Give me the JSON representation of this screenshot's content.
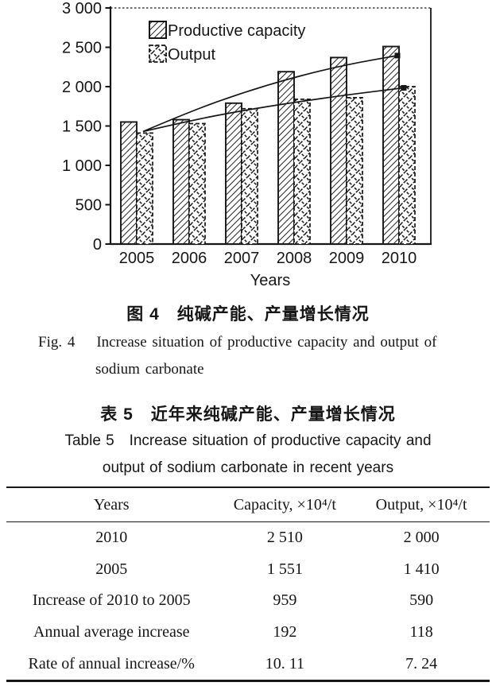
{
  "figure": {
    "caption_cn": "图 4　纯碱产能、产量增长情况",
    "caption_en_line1": "Fig. 4    Increase situation of productive capacity and output of",
    "caption_en_line2": "sodium carbonate"
  },
  "chart_data": {
    "type": "bar",
    "title": "",
    "xlabel": "Years",
    "ylabel": "",
    "ylim": [
      0,
      3000
    ],
    "yticks": [
      0,
      500,
      1000,
      1500,
      2000,
      2500,
      3000
    ],
    "ytick_labels": [
      "0",
      "500",
      "1 000",
      "1 500",
      "2 000",
      "2 500",
      "3 000"
    ],
    "categories": [
      "2005",
      "2006",
      "2007",
      "2008",
      "2009",
      "2010"
    ],
    "series": [
      {
        "name": "Productive capacity",
        "pattern": "diagonal-hatch",
        "values": [
          1551,
          1580,
          1790,
          2190,
          2370,
          2510
        ]
      },
      {
        "name": "Output",
        "pattern": "diamond-crosshatch",
        "values": [
          1410,
          1530,
          1720,
          1840,
          1860,
          2000
        ]
      }
    ],
    "trend_lines": [
      {
        "series": "Productive capacity",
        "values": [
          1430,
          1680,
          1920,
          2120,
          2280,
          2395
        ]
      },
      {
        "series": "Output",
        "values": [
          1430,
          1565,
          1695,
          1800,
          1895,
          1985
        ]
      }
    ],
    "legend_position": "top-left-inside",
    "grid": false
  },
  "table": {
    "caption_cn": "表 5　近年来纯碱产能、产量增长情况",
    "caption_en_line1": "Table 5   Increase situation of productive capacity and",
    "caption_en_line2": "output of sodium carbonate in recent years",
    "columns": [
      "Years",
      "Capacity, ×10⁴/t",
      "Output, ×10⁴/t"
    ],
    "rows": [
      [
        "2010",
        "2 510",
        "2 000"
      ],
      [
        "2005",
        "1 551",
        "1 410"
      ],
      [
        "Increase of 2010 to 2005",
        "959",
        "590"
      ],
      [
        "Annual average increase",
        "192",
        "118"
      ],
      [
        "Rate of annual increase/%",
        "10. 11",
        "7. 24"
      ]
    ]
  },
  "colors": {
    "ink": "#161616",
    "paper": "#ffffff"
  }
}
